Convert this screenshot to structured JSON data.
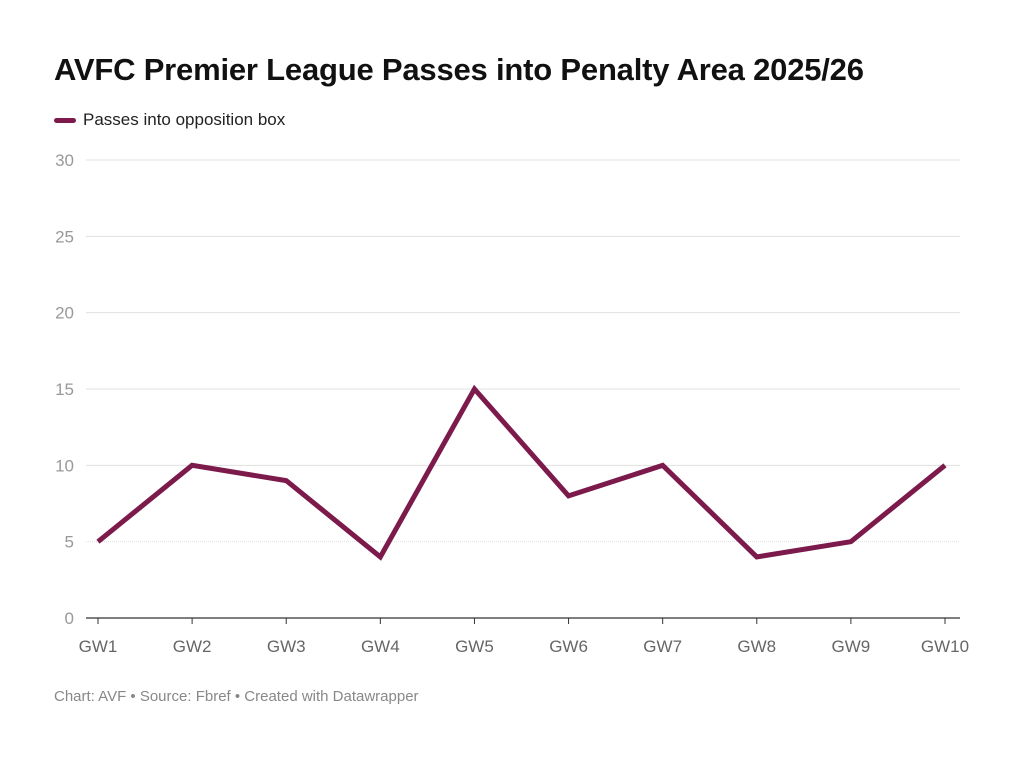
{
  "chart_data": {
    "type": "line",
    "title": "AVFC Premier League Passes into Penalty Area 2025/26",
    "xlabel": "",
    "ylabel": "",
    "categories": [
      "GW1",
      "GW2",
      "GW3",
      "GW4",
      "GW5",
      "GW6",
      "GW7",
      "GW8",
      "GW9",
      "GW10"
    ],
    "series": [
      {
        "name": "Passes into opposition box",
        "color": "#7b1a4b",
        "values": [
          5,
          10,
          9,
          4,
          15,
          8,
          10,
          4,
          5,
          10
        ]
      }
    ],
    "ylim": [
      0,
      30
    ],
    "yticks": [
      0,
      5,
      10,
      15,
      20,
      25,
      30
    ],
    "grid": true,
    "legend_position": "top-left"
  },
  "footer": {
    "credit": "Chart: AVF • Source: Fbref • Created with Datawrapper"
  }
}
